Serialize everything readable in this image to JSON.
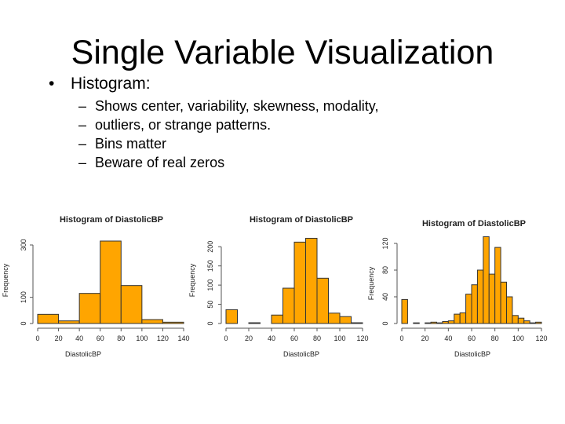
{
  "slide": {
    "title": "Single Variable Visualization",
    "bullet": {
      "marker": "•",
      "text": "Histogram:"
    },
    "sub_items": [
      {
        "marker": "–",
        "text": "Shows center, variability, skewness, modality,"
      },
      {
        "marker": "–",
        "text": "outliers, or strange patterns."
      },
      {
        "marker": "–",
        "text": "Bins matter"
      },
      {
        "marker": "–",
        "text": "Beware of real zeros"
      }
    ]
  },
  "colors": {
    "bar_fill": "#FFA500",
    "bar_stroke": "#333333",
    "axis": "#555555"
  },
  "chart_data": [
    {
      "type": "bar",
      "title": "Histogram of DiastolicBP",
      "xlabel": "DiastolicBP",
      "ylabel": "Frequency",
      "bin_edges": [
        0,
        20,
        40,
        60,
        80,
        100,
        120,
        140
      ],
      "values": [
        35,
        10,
        115,
        315,
        145,
        15,
        5
      ],
      "xlim": [
        0,
        140
      ],
      "ylim": [
        0,
        330
      ],
      "xticks": [
        0,
        20,
        40,
        60,
        80,
        100,
        120,
        140
      ],
      "xtick_labels": [
        "0",
        "20",
        "40",
        "60",
        "80",
        "100",
        "120",
        "140"
      ],
      "yticks": [
        0,
        100,
        300
      ],
      "ytick_labels": [
        "0",
        "100",
        "300"
      ]
    },
    {
      "type": "bar",
      "title": "Histogram of DiastolicBP",
      "xlabel": "DiastolicBP",
      "ylabel": "Frequency",
      "bin_edges": [
        0,
        10,
        20,
        30,
        40,
        50,
        60,
        70,
        80,
        90,
        100,
        110,
        120
      ],
      "values": [
        36,
        0,
        2,
        0,
        22,
        92,
        212,
        222,
        118,
        27,
        18,
        2
      ],
      "xlim": [
        0,
        120
      ],
      "ylim": [
        0,
        225
      ],
      "xticks": [
        0,
        20,
        40,
        60,
        80,
        100,
        120
      ],
      "xtick_labels": [
        "0",
        "20",
        "40",
        "60",
        "80",
        "100",
        "120"
      ],
      "yticks": [
        0,
        50,
        100,
        150,
        200
      ],
      "ytick_labels": [
        "0",
        "50",
        "100",
        "150",
        "200"
      ]
    },
    {
      "type": "bar",
      "title": "Histogram of DiastolicBP",
      "xlabel": "DiastolicBP",
      "ylabel": "Frequency",
      "bin_edges": [
        0,
        5,
        10,
        15,
        20,
        25,
        30,
        35,
        40,
        45,
        50,
        55,
        60,
        65,
        70,
        75,
        80,
        85,
        90,
        95,
        100,
        105,
        110,
        115,
        120
      ],
      "values": [
        36,
        0,
        1,
        0,
        1,
        2,
        1,
        3,
        4,
        14,
        16,
        44,
        58,
        80,
        130,
        74,
        114,
        62,
        40,
        12,
        8,
        4,
        1,
        2
      ],
      "xlim": [
        0,
        120
      ],
      "ylim": [
        0,
        120
      ],
      "xticks": [
        0,
        20,
        40,
        60,
        80,
        100,
        120
      ],
      "xtick_labels": [
        "0",
        "20",
        "40",
        "60",
        "80",
        "100",
        "120"
      ],
      "yticks": [
        0,
        40,
        80,
        120
      ],
      "ytick_labels": [
        "0",
        "40",
        "80",
        "120"
      ]
    }
  ]
}
